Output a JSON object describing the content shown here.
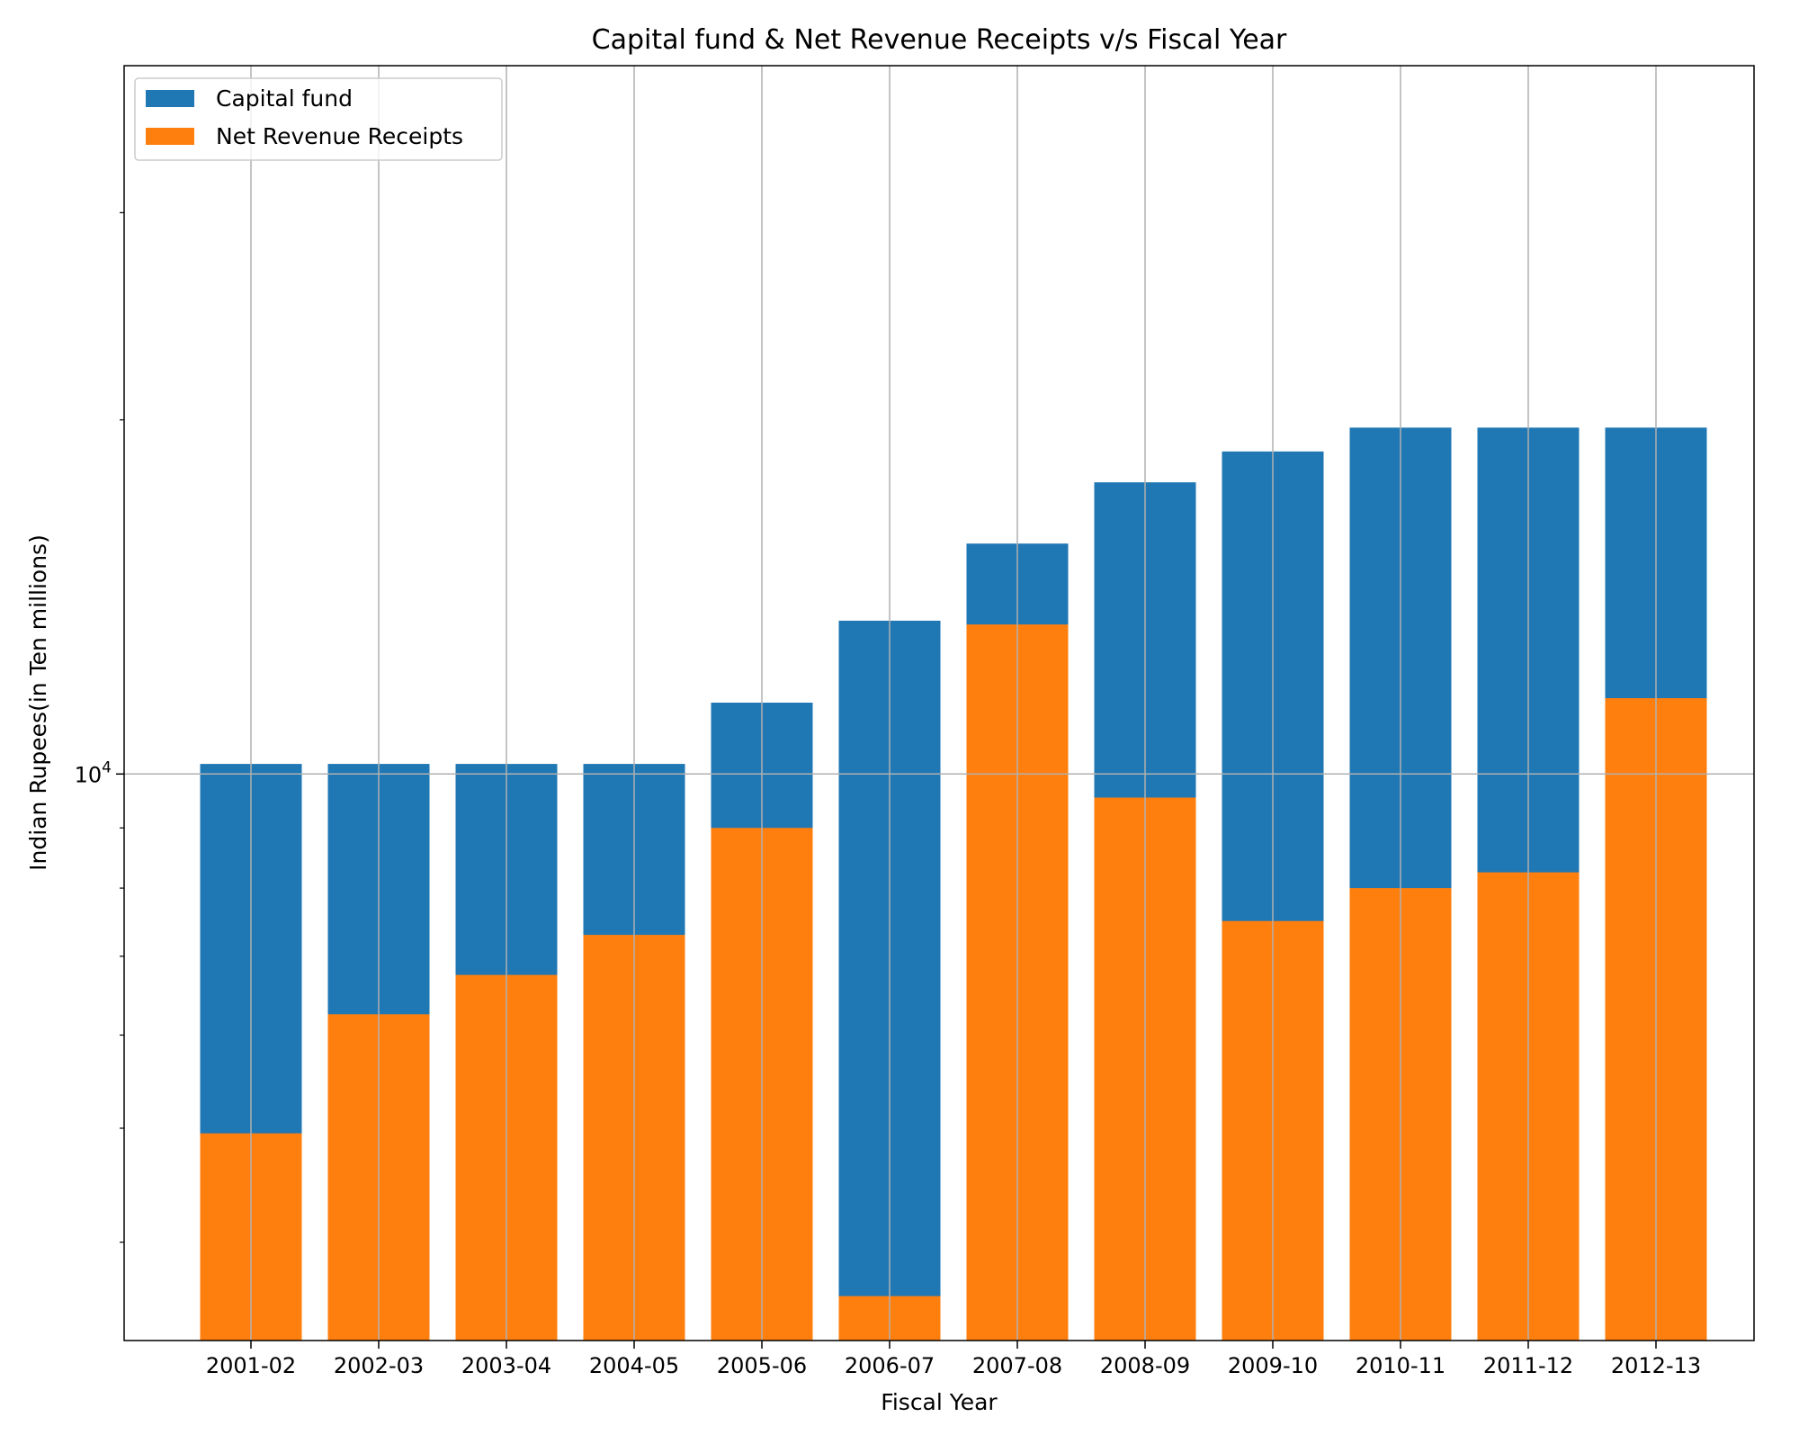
{
  "chart_data": {
    "type": "bar",
    "title": "Capital fund & Net Revenue Receipts v/s Fiscal Year",
    "xlabel": "Fiscal Year",
    "ylabel": "Indian Rupees(in Ten millions)",
    "yscale": "log",
    "ylim": [
      3300,
      40000
    ],
    "y_major_tick_label": {
      "base": "10",
      "exponent": "4",
      "value": 10000
    },
    "y_minor_ticks": [
      4000,
      5000,
      6000,
      7000,
      8000,
      9000,
      20000,
      30000
    ],
    "grid": true,
    "legend_position": "top-left",
    "categories": [
      "2001-02",
      "2002-03",
      "2003-04",
      "2004-05",
      "2005-06",
      "2006-07",
      "2007-08",
      "2008-09",
      "2009-10",
      "2010-11",
      "2011-12",
      "2012-13"
    ],
    "series": [
      {
        "name": "Capital fund",
        "color": "#1f77b4",
        "values": [
          10200,
          10200,
          10200,
          10200,
          11500,
          13500,
          15700,
          17700,
          18800,
          19700,
          19700,
          19700
        ]
      },
      {
        "name": "Net Revenue Receipts",
        "color": "#ff7f0e",
        "values": [
          4950,
          6250,
          6750,
          7300,
          9000,
          3600,
          13400,
          9550,
          7500,
          8000,
          8250,
          11600
        ]
      }
    ]
  }
}
